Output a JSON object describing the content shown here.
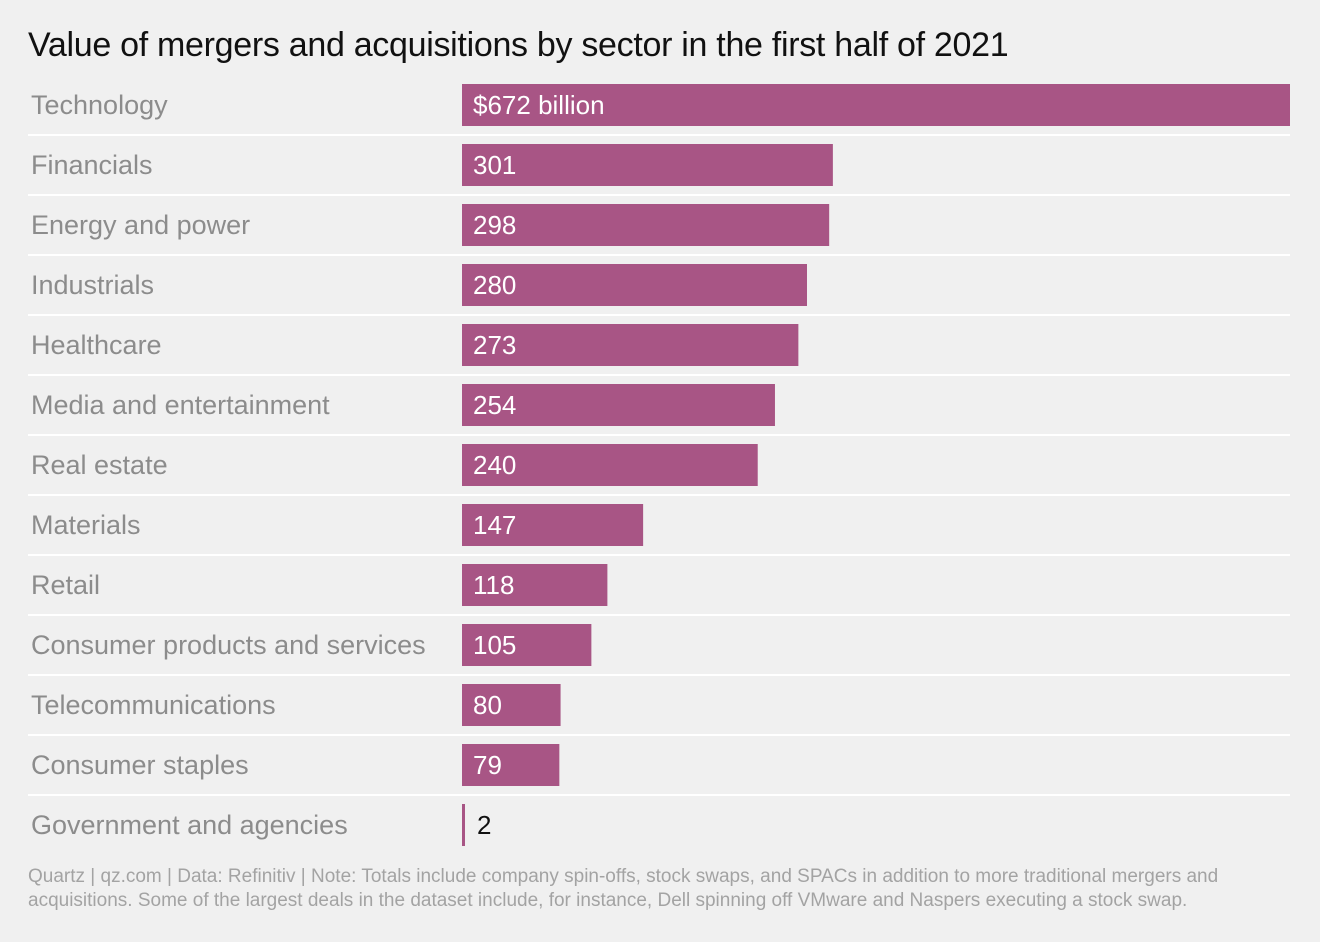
{
  "chart_data": {
    "type": "bar",
    "orientation": "horizontal",
    "title": "Value of mergers and acquisitions by sector in the first half of 2021",
    "categories": [
      "Technology",
      "Financials",
      "Energy and power",
      "Industrials",
      "Healthcare",
      "Media and entertainment",
      "Real estate",
      "Materials",
      "Retail",
      "Consumer products and services",
      "Telecommunications",
      "Consumer staples",
      "Government and agencies"
    ],
    "values": [
      672,
      301,
      298,
      280,
      273,
      254,
      240,
      147,
      118,
      105,
      80,
      79,
      2
    ],
    "value_labels": [
      "$672 billion",
      "301",
      "298",
      "280",
      "273",
      "254",
      "240",
      "147",
      "118",
      "105",
      "80",
      "79",
      "2"
    ],
    "xlim": [
      0,
      672
    ],
    "grid": false,
    "colors": {
      "bar": "#a85585",
      "background": "#f0f0f0",
      "separator": "#ffffff",
      "category_text": "#8c8c8c",
      "value_text_inside": "#ffffff",
      "value_text_outside": "#111111"
    }
  },
  "footer": "Quartz | qz.com | Data: Refinitiv | Note: Totals include company spin-offs, stock swaps, and SPACs in addition to more traditional mergers and acquisitions. Some of the largest deals in the dataset include, for instance, Dell spinning off VMware and Naspers executing a stock swap."
}
